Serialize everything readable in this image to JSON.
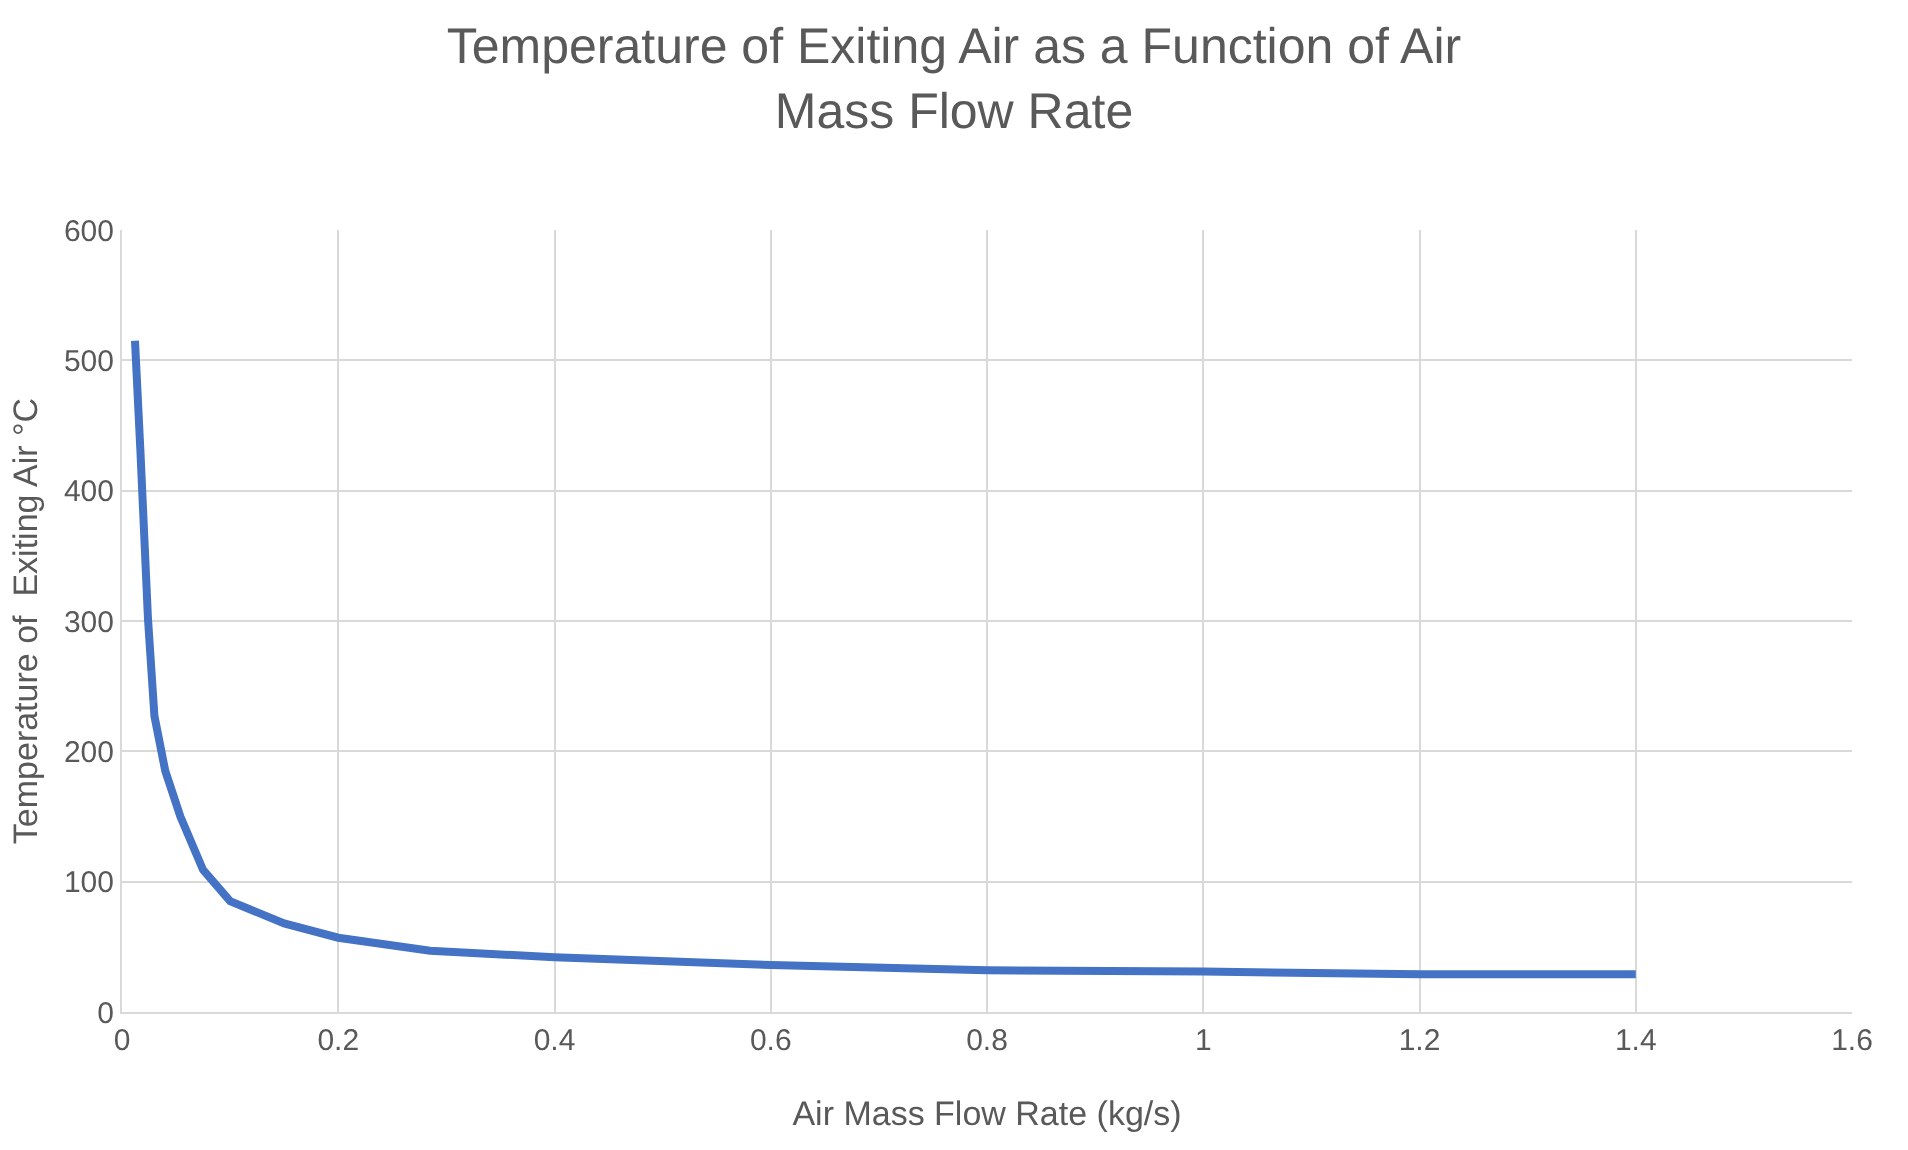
{
  "chart_data": {
    "type": "line",
    "title": "Temperature of Exiting Air as a Function of Air Mass Flow Rate",
    "xlabel": "Air Mass Flow Rate (kg/s)",
    "ylabel": "Temperature of  Exiting Air °C",
    "x": [
      0.012,
      0.017,
      0.024,
      0.03,
      0.04,
      0.054,
      0.075,
      0.1,
      0.15,
      0.2,
      0.285,
      0.4,
      0.6,
      0.8,
      1.0,
      1.2,
      1.4
    ],
    "series": [
      {
        "color": "#4472c4",
        "values": [
          515,
          431,
          302,
          227,
          185,
          150,
          109,
          85,
          68,
          57,
          47,
          42,
          36,
          32,
          31,
          29,
          29
        ]
      }
    ],
    "xlim": [
      0,
      1.6
    ],
    "xticks": [
      0,
      0.2,
      0.4,
      0.6,
      0.8,
      1,
      1.2,
      1.4,
      1.6
    ],
    "ylim": [
      0,
      600
    ],
    "yticks": [
      0,
      100,
      200,
      300,
      400,
      500,
      600
    ],
    "grid": true,
    "marker": "none",
    "line_style": "solid"
  }
}
